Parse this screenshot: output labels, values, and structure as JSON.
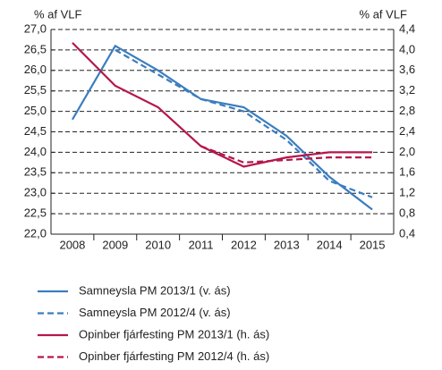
{
  "chart_data": {
    "type": "line",
    "y_label": "% af VLF",
    "y2_label": "% af VLF",
    "categories": [
      "2008",
      "2009",
      "2010",
      "2011",
      "2012",
      "2013",
      "2014",
      "2015"
    ],
    "ylim": [
      22.0,
      27.0
    ],
    "yticks": [
      {
        "value": 22.0,
        "label": "22,0"
      },
      {
        "value": 22.5,
        "label": "22,5"
      },
      {
        "value": 23.0,
        "label": "23,0"
      },
      {
        "value": 23.5,
        "label": "23,5"
      },
      {
        "value": 24.0,
        "label": "24,0"
      },
      {
        "value": 24.5,
        "label": "24,5"
      },
      {
        "value": 25.0,
        "label": "25,0"
      },
      {
        "value": 25.5,
        "label": "25,5"
      },
      {
        "value": 26.0,
        "label": "26,0"
      },
      {
        "value": 26.5,
        "label": "26,5"
      },
      {
        "value": 27.0,
        "label": "27,0"
      }
    ],
    "y2lim": [
      0.4,
      4.4
    ],
    "y2ticks": [
      {
        "value": 0.4,
        "label": "0,4"
      },
      {
        "value": 0.8,
        "label": "0,8"
      },
      {
        "value": 1.2,
        "label": "1,2"
      },
      {
        "value": 1.6,
        "label": "1,6"
      },
      {
        "value": 2.0,
        "label": "2,0"
      },
      {
        "value": 2.4,
        "label": "2,4"
      },
      {
        "value": 2.8,
        "label": "2,8"
      },
      {
        "value": 3.2,
        "label": "3,2"
      },
      {
        "value": 3.6,
        "label": "3,6"
      },
      {
        "value": 4.0,
        "label": "4,0"
      },
      {
        "value": 4.4,
        "label": "4,4"
      }
    ],
    "grid": true,
    "series": [
      {
        "name": "Samneysla PM 2013/1 (v. ás)",
        "color": "#3b7dbf",
        "dashed": false,
        "values": [
          24.8,
          26.6,
          26.0,
          25.3,
          25.1,
          24.4,
          23.4,
          22.6
        ]
      },
      {
        "name": "Samneysla PM 2012/4 (v. ás)",
        "color": "#3b7dbf",
        "dashed": true,
        "values": [
          null,
          26.5,
          25.9,
          25.3,
          25.0,
          24.3,
          23.3,
          22.9
        ]
      },
      {
        "name": "Opinber fjárfesting PM 2013/1 (h. ás)",
        "color": "#b5174b",
        "dashed": false,
        "axis": "y2",
        "values": [
          4.14,
          3.3,
          2.88,
          2.12,
          1.72,
          1.9,
          2.0,
          2.0
        ]
      },
      {
        "name": "Opinber fjárfesting PM 2012/4 (h. ás)",
        "color": "#b5174b",
        "dashed": true,
        "axis": "y2",
        "values": [
          null,
          null,
          null,
          2.12,
          1.8,
          1.85,
          1.9,
          1.9
        ]
      }
    ]
  }
}
